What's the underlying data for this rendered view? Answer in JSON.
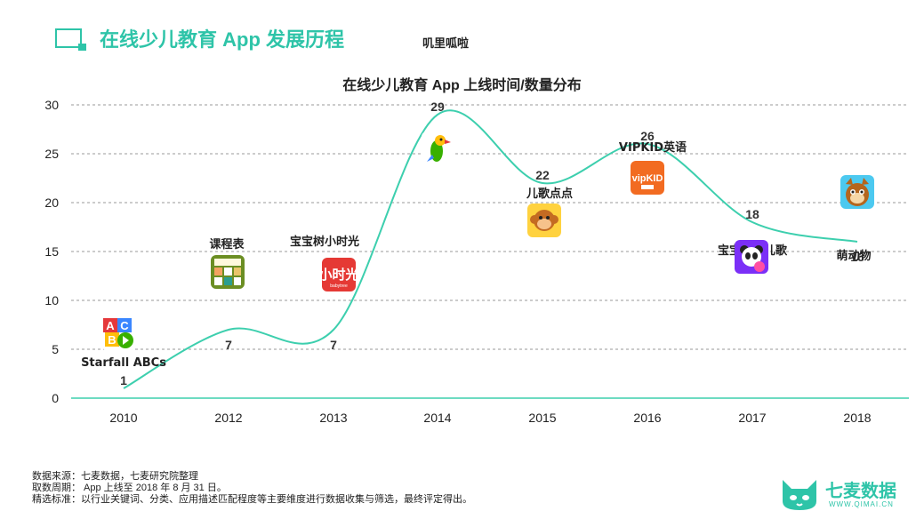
{
  "header": {
    "title": "在线少儿教育 App 发展历程"
  },
  "chart_data": {
    "type": "line",
    "title": "在线少儿教育 App 上线时间/数量分布",
    "categories": [
      "2010",
      "2012",
      "2013",
      "2014",
      "2015",
      "2016",
      "2017",
      "2018"
    ],
    "values": [
      1,
      7,
      7,
      29,
      22,
      26,
      18,
      16
    ],
    "ylim": [
      0,
      30
    ],
    "yticks": [
      "0",
      "5",
      "10",
      "15",
      "20",
      "25",
      "30"
    ],
    "grid": true,
    "line_color": "#3dcfae",
    "apps": [
      {
        "year": "2010",
        "name": "Starfall ABCs"
      },
      {
        "year": "2012",
        "name": "课程表"
      },
      {
        "year": "2013",
        "name": "宝宝树小时光"
      },
      {
        "year": "2014",
        "name": "叽里呱啦"
      },
      {
        "year": "2015",
        "name": "儿歌点点"
      },
      {
        "year": "2016",
        "name": "VIPKID英语"
      },
      {
        "year": "2017",
        "name": "宝宝巴士儿歌"
      },
      {
        "year": "2018",
        "name": "萌动物"
      }
    ]
  },
  "footer": {
    "source": "数据来源：七麦数据，七麦研究院整理",
    "period": "取数周期： App 上线至 2018 年 8 月 31 日。",
    "note": "精选标准：以行业关键词、分类、应用描述匹配程度等主要维度进行数据收集与筛选，最终评定得出。"
  },
  "brand": {
    "name": "七麦数据",
    "url": "WWW.QIMAI.CN",
    "color": "#2ec4a8"
  }
}
